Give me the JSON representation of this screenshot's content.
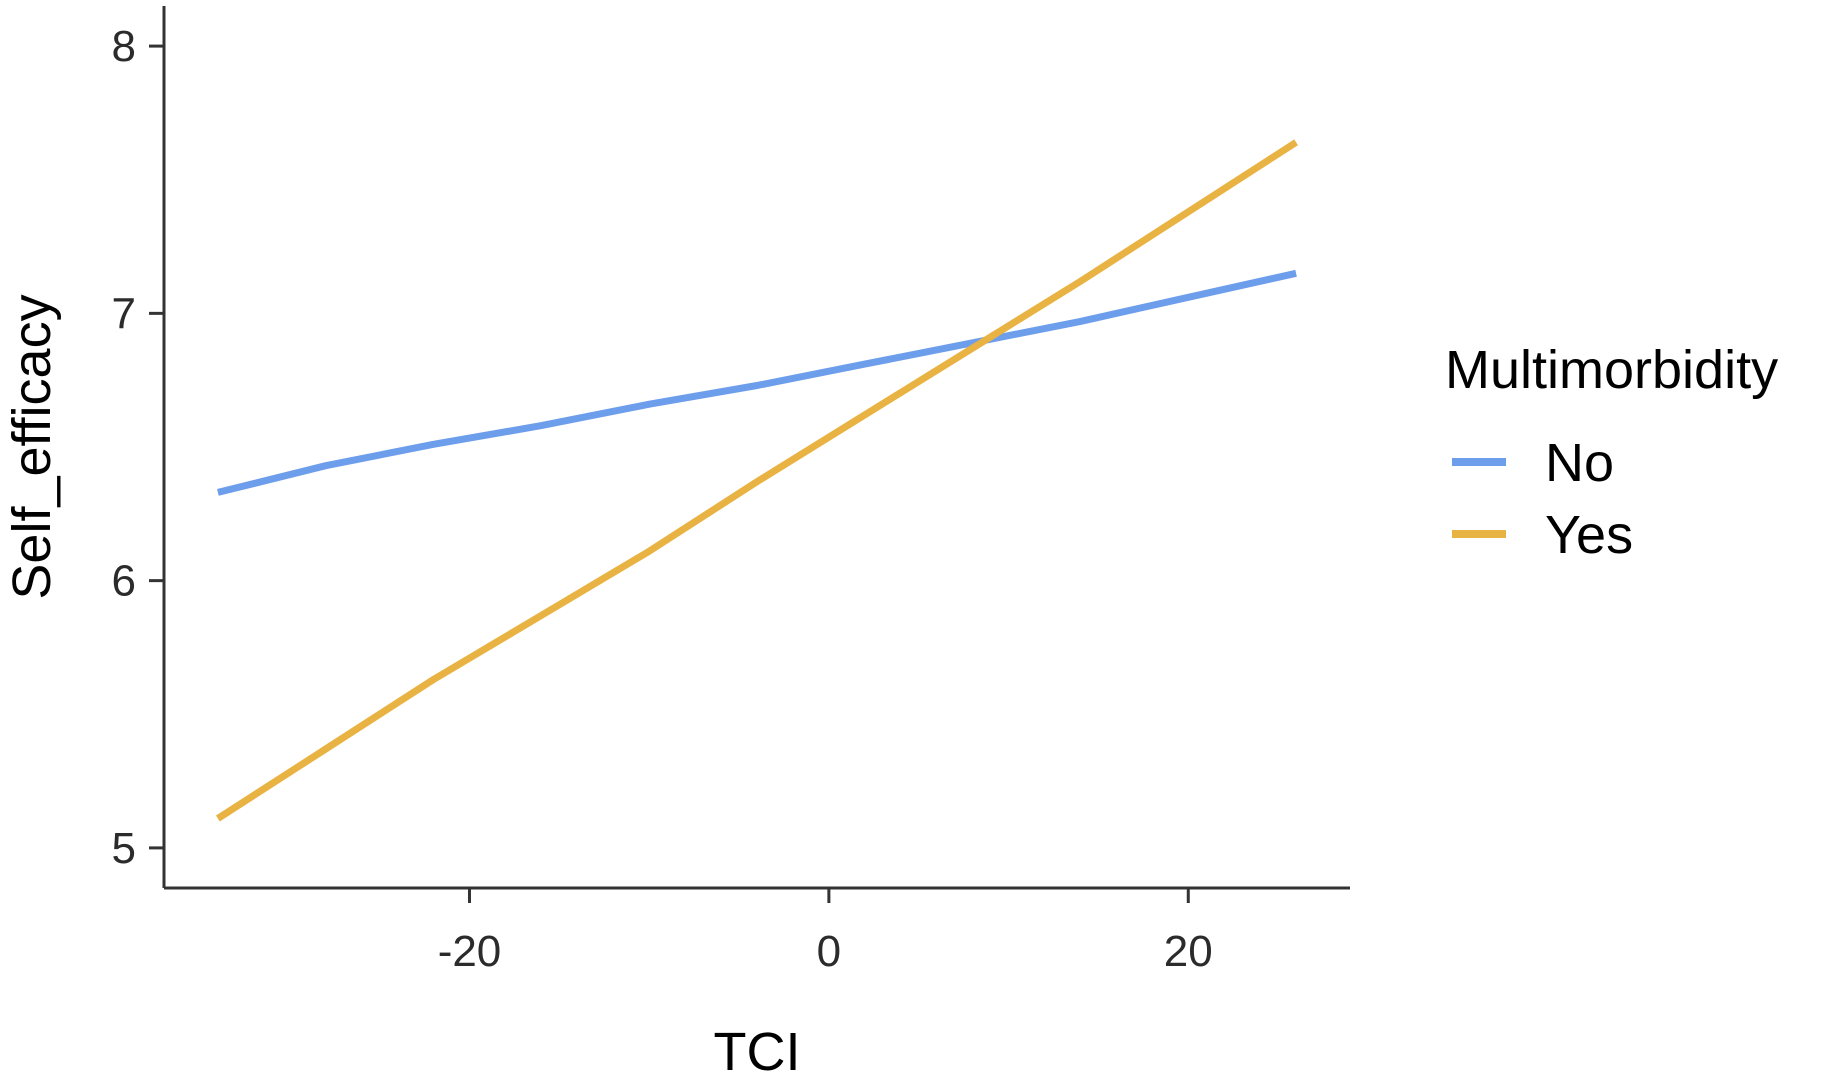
{
  "chart_data": {
    "type": "line",
    "xlabel": "TCI",
    "ylabel": "Self_efficacy",
    "xlim": [
      -37,
      29
    ],
    "ylim": [
      4.85,
      8.15
    ],
    "x_ticks": [
      -20,
      0,
      20
    ],
    "x_tick_labels": [
      "-20",
      "0",
      "20"
    ],
    "y_ticks": [
      5,
      6,
      7,
      8
    ],
    "y_tick_labels": [
      "5",
      "6",
      "7",
      "8"
    ],
    "grid": false,
    "legend": {
      "title": "Multimorbidity",
      "position": "right"
    },
    "series": [
      {
        "name": "No",
        "color": "#6D9EEB",
        "x": [
          -34,
          -28,
          -22,
          -16,
          -10,
          -4,
          2,
          8,
          14,
          20,
          26
        ],
        "y": [
          6.33,
          6.43,
          6.51,
          6.58,
          6.66,
          6.73,
          6.81,
          6.89,
          6.97,
          7.06,
          7.15
        ]
      },
      {
        "name": "Yes",
        "color": "#E8B342",
        "x": [
          -34,
          -28,
          -22,
          -16,
          -10,
          -4,
          2,
          8,
          14,
          20,
          26
        ],
        "y": [
          5.11,
          5.37,
          5.63,
          5.87,
          6.11,
          6.37,
          6.62,
          6.87,
          7.12,
          7.38,
          7.64
        ]
      }
    ]
  }
}
